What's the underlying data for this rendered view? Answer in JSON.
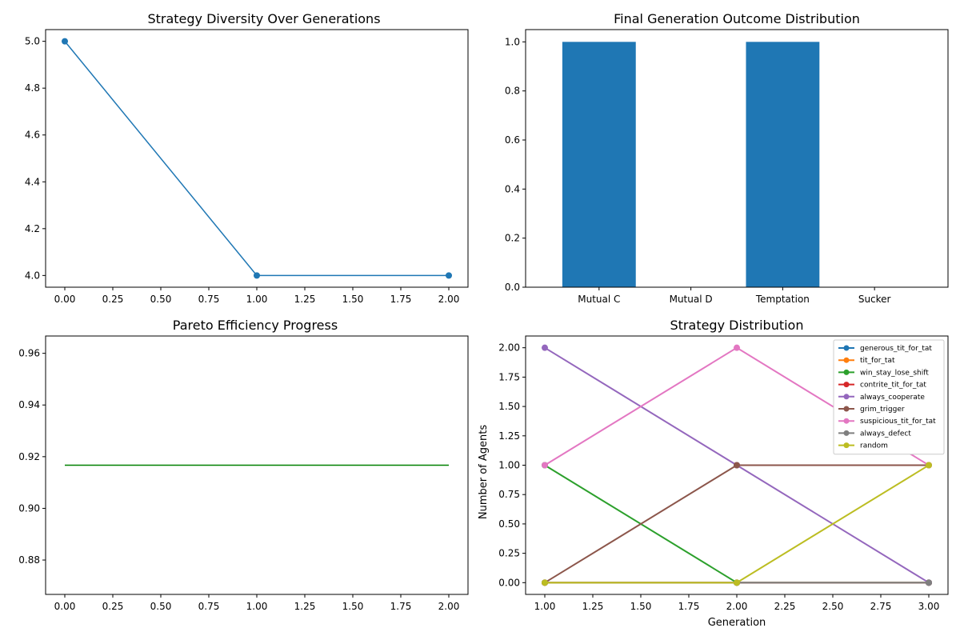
{
  "chart_data": [
    {
      "type": "line",
      "title": "Strategy Diversity Over Generations",
      "xlabel": "",
      "ylabel": "",
      "x": [
        0,
        1,
        2
      ],
      "series": [
        {
          "values": [
            5,
            4,
            4
          ],
          "color": "#1f77b4",
          "markers": true
        }
      ],
      "xlim": [
        -0.1,
        2.1
      ],
      "ylim": [
        3.95,
        5.05
      ],
      "xticks": [
        "0.00",
        "0.25",
        "0.50",
        "0.75",
        "1.00",
        "1.25",
        "1.50",
        "1.75",
        "2.00"
      ],
      "yticks": [
        "4.0",
        "4.2",
        "4.4",
        "4.6",
        "4.8",
        "5.0"
      ],
      "grid": false
    },
    {
      "type": "bar",
      "title": "Final Generation Outcome Distribution",
      "xlabel": "",
      "ylabel": "",
      "categories": [
        "Mutual C",
        "Mutual D",
        "Temptation",
        "Sucker"
      ],
      "values": [
        1,
        0,
        1,
        0
      ],
      "color": "#1f77b4",
      "ylim": [
        0,
        1.05
      ],
      "yticks": [
        "0.0",
        "0.2",
        "0.4",
        "0.6",
        "0.8",
        "1.0"
      ],
      "grid": false
    },
    {
      "type": "line",
      "title": "Pareto Efficiency Progress",
      "xlabel": "",
      "ylabel": "",
      "x": [
        0,
        1,
        2
      ],
      "series": [
        {
          "values": [
            0.9167,
            0.9167,
            0.9167
          ],
          "color": "#008000",
          "markers": false
        }
      ],
      "xlim": [
        -0.1,
        2.1
      ],
      "ylim": [
        0.8667,
        0.9667
      ],
      "xticks": [
        "0.00",
        "0.25",
        "0.50",
        "0.75",
        "1.00",
        "1.25",
        "1.50",
        "1.75",
        "2.00"
      ],
      "yticks": [
        "0.88",
        "0.90",
        "0.92",
        "0.94",
        "0.96"
      ],
      "grid": false
    },
    {
      "type": "line",
      "title": "Strategy Distribution",
      "xlabel": "Generation",
      "ylabel": "Number of Agents",
      "x": [
        1,
        2,
        3
      ],
      "xlim": [
        0.9,
        3.1
      ],
      "ylim": [
        -0.1,
        2.1
      ],
      "xticks": [
        "1.00",
        "1.25",
        "1.50",
        "1.75",
        "2.00",
        "2.25",
        "2.50",
        "2.75",
        "3.00"
      ],
      "yticks": [
        "0.00",
        "0.25",
        "0.50",
        "0.75",
        "1.00",
        "1.25",
        "1.50",
        "1.75",
        "2.00"
      ],
      "legend": "top-right",
      "grid": false,
      "series": [
        {
          "name": "generous_tit_for_tat",
          "values": [
            0,
            0,
            0
          ],
          "color": "#1f77b4"
        },
        {
          "name": "tit_for_tat",
          "values": [
            0,
            0,
            0
          ],
          "color": "#ff7f0e"
        },
        {
          "name": "win_stay_lose_shift",
          "values": [
            1,
            0,
            0
          ],
          "color": "#2ca02c"
        },
        {
          "name": "contrite_tit_for_tat",
          "values": [
            0,
            0,
            0
          ],
          "color": "#d62728"
        },
        {
          "name": "always_cooperate",
          "values": [
            2,
            1,
            0
          ],
          "color": "#9467bd"
        },
        {
          "name": "grim_trigger",
          "values": [
            0,
            1,
            1
          ],
          "color": "#8c564b"
        },
        {
          "name": "suspicious_tit_for_tat",
          "values": [
            1,
            2,
            1
          ],
          "color": "#e377c2"
        },
        {
          "name": "always_defect",
          "values": [
            0,
            0,
            0
          ],
          "color": "#7f7f7f"
        },
        {
          "name": "random",
          "values": [
            0,
            0,
            1
          ],
          "color": "#bcbd22"
        }
      ]
    }
  ]
}
